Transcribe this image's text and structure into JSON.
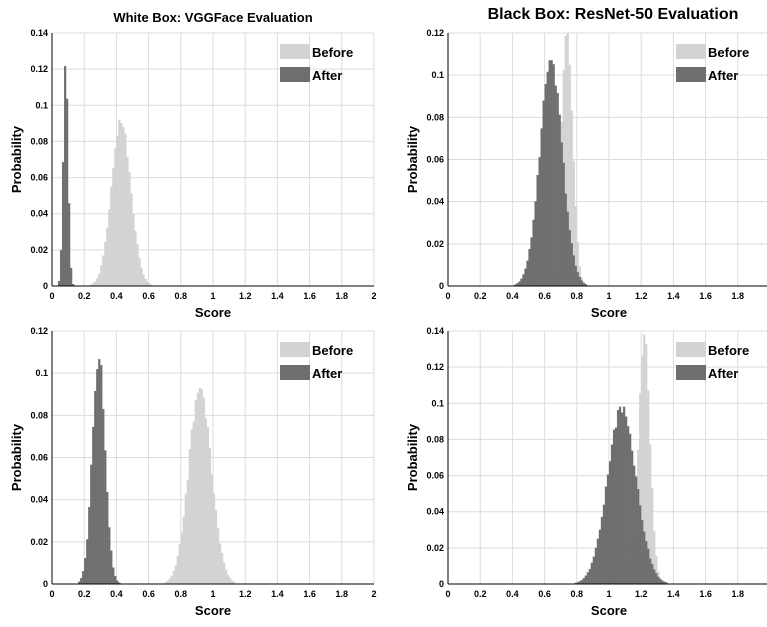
{
  "titles": {
    "left": "White Box: VGGFace Evaluation",
    "right": "Black Box: ResNet-50 Evaluation"
  },
  "colors": {
    "before": "#d3d3d3",
    "after": "#6e6e6e",
    "grid": "#dcdcdc"
  },
  "chart_data": [
    {
      "type": "bar",
      "xlabel": "Score",
      "ylabel": "Probability",
      "xlim": [
        0,
        2
      ],
      "ylim": [
        0,
        0.14
      ],
      "xticks": [
        "0",
        "0.2",
        "0.4",
        "0.6",
        "0.8",
        "1",
        "1.2",
        "1.4",
        "1.6",
        "1.8",
        "2"
      ],
      "yticks": [
        "0",
        "0.02",
        "0.04",
        "0.06",
        "0.08",
        "0.1",
        "0.12",
        "0.14"
      ],
      "grid": true,
      "legend": "top-right",
      "series": [
        {
          "name": "Before",
          "mean": 0.43,
          "sd": 0.06,
          "peak": 0.092
        },
        {
          "name": "After",
          "mean": 0.085,
          "sd": 0.015,
          "peak": 0.124
        }
      ]
    },
    {
      "type": "bar",
      "xlabel": "Score",
      "ylabel": "Probability",
      "xlim": [
        0,
        2
      ],
      "ylim": [
        0,
        0.12
      ],
      "xticks": [
        "0",
        "0.2",
        "0.4",
        "0.6",
        "0.8",
        "1",
        "1.2",
        "1.4",
        "1.6",
        "1.8",
        ""
      ],
      "yticks": [
        "0",
        "0.02",
        "0.04",
        "0.06",
        "0.08",
        "0.1",
        "0.12"
      ],
      "grid": true,
      "legend": "top-right",
      "series": [
        {
          "name": "Before",
          "mean": 0.74,
          "sd": 0.035,
          "peak": 0.12
        },
        {
          "name": "After",
          "mean": 0.64,
          "sd": 0.07,
          "peak": 0.107
        }
      ]
    },
    {
      "type": "bar",
      "xlabel": "Score",
      "ylabel": "Probability",
      "xlim": [
        0,
        2
      ],
      "ylim": [
        0,
        0.12
      ],
      "xticks": [
        "0",
        "0.2",
        "0.4",
        "0.6",
        "0.8",
        "1",
        "1.2",
        "1.4",
        "1.6",
        "1.8",
        "2"
      ],
      "yticks": [
        "0",
        "0.02",
        "0.04",
        "0.06",
        "0.08",
        "0.1",
        "0.12"
      ],
      "grid": true,
      "legend": "top-right",
      "series": [
        {
          "name": "Before",
          "mean": 0.92,
          "sd": 0.07,
          "peak": 0.093
        },
        {
          "name": "After",
          "mean": 0.29,
          "sd": 0.04,
          "peak": 0.108
        }
      ]
    },
    {
      "type": "bar",
      "xlabel": "Score",
      "ylabel": "Probability",
      "xlim": [
        0,
        2
      ],
      "ylim": [
        0,
        0.14
      ],
      "xticks": [
        "0",
        "0.2",
        "0.4",
        "0.6",
        "0.8",
        "1",
        "1.2",
        "1.4",
        "1.6",
        "1.8",
        ""
      ],
      "yticks": [
        "0",
        "0.02",
        "0.04",
        "0.06",
        "0.08",
        "0.1",
        "0.12",
        "0.14"
      ],
      "grid": true,
      "legend": "top-right",
      "series": [
        {
          "name": "Before",
          "mean": 1.22,
          "sd": 0.035,
          "peak": 0.138
        },
        {
          "name": "After",
          "mean": 1.08,
          "sd": 0.09,
          "peak": 0.098
        }
      ]
    }
  ]
}
